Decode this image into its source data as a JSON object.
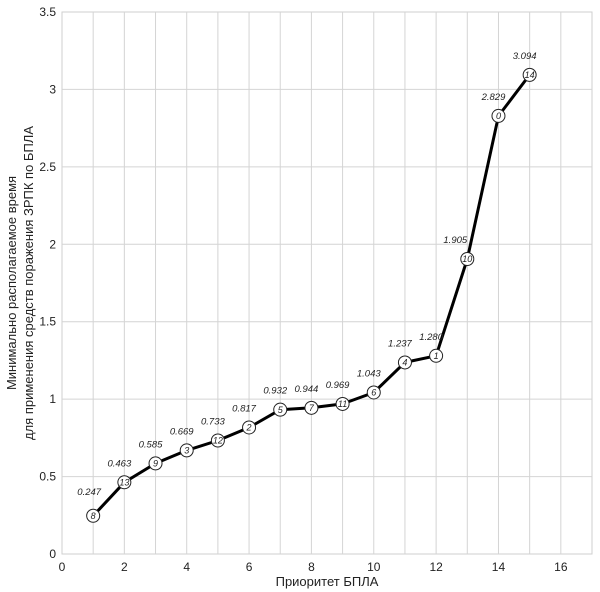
{
  "chart_data": {
    "type": "line",
    "xlabel": "Приоритет БПЛА",
    "ylabel_lines": [
      "Минимально располагаемое время",
      "для применения средств поражения ЗРПК по БПЛА"
    ],
    "xlim": [
      0,
      17
    ],
    "ylim": [
      0,
      3.5
    ],
    "x_ticks": [
      "0",
      "2",
      "4",
      "6",
      "8",
      "10",
      "12",
      "14",
      "16"
    ],
    "y_ticks": [
      "0",
      "0.5",
      "1",
      "1.5",
      "2",
      "2.5",
      "3",
      "3.5"
    ],
    "grid": true,
    "legend": "none",
    "line_color": "#000000",
    "points": [
      {
        "x": 1,
        "y": 0.247,
        "label": "0.247",
        "id": "8"
      },
      {
        "x": 2,
        "y": 0.463,
        "label": "0.463",
        "id": "13"
      },
      {
        "x": 3,
        "y": 0.585,
        "label": "0.585",
        "id": "9"
      },
      {
        "x": 4,
        "y": 0.669,
        "label": "0.669",
        "id": "3"
      },
      {
        "x": 5,
        "y": 0.733,
        "label": "0.733",
        "id": "12"
      },
      {
        "x": 6,
        "y": 0.817,
        "label": "0.817",
        "id": "2"
      },
      {
        "x": 7,
        "y": 0.932,
        "label": "0.932",
        "id": "5"
      },
      {
        "x": 8,
        "y": 0.944,
        "label": "0.944",
        "id": "7"
      },
      {
        "x": 9,
        "y": 0.969,
        "label": "0.969",
        "id": "11"
      },
      {
        "x": 10,
        "y": 1.043,
        "label": "1.043",
        "id": "6"
      },
      {
        "x": 11,
        "y": 1.237,
        "label": "1.237",
        "id": "4"
      },
      {
        "x": 12,
        "y": 1.28,
        "label": "1.280",
        "id": "1"
      },
      {
        "x": 13,
        "y": 1.905,
        "label": "1.905",
        "id": "10"
      },
      {
        "x": 14,
        "y": 2.829,
        "label": "2.829",
        "id": "0"
      },
      {
        "x": 15,
        "y": 3.094,
        "label": "3.094",
        "id": "14"
      }
    ]
  }
}
